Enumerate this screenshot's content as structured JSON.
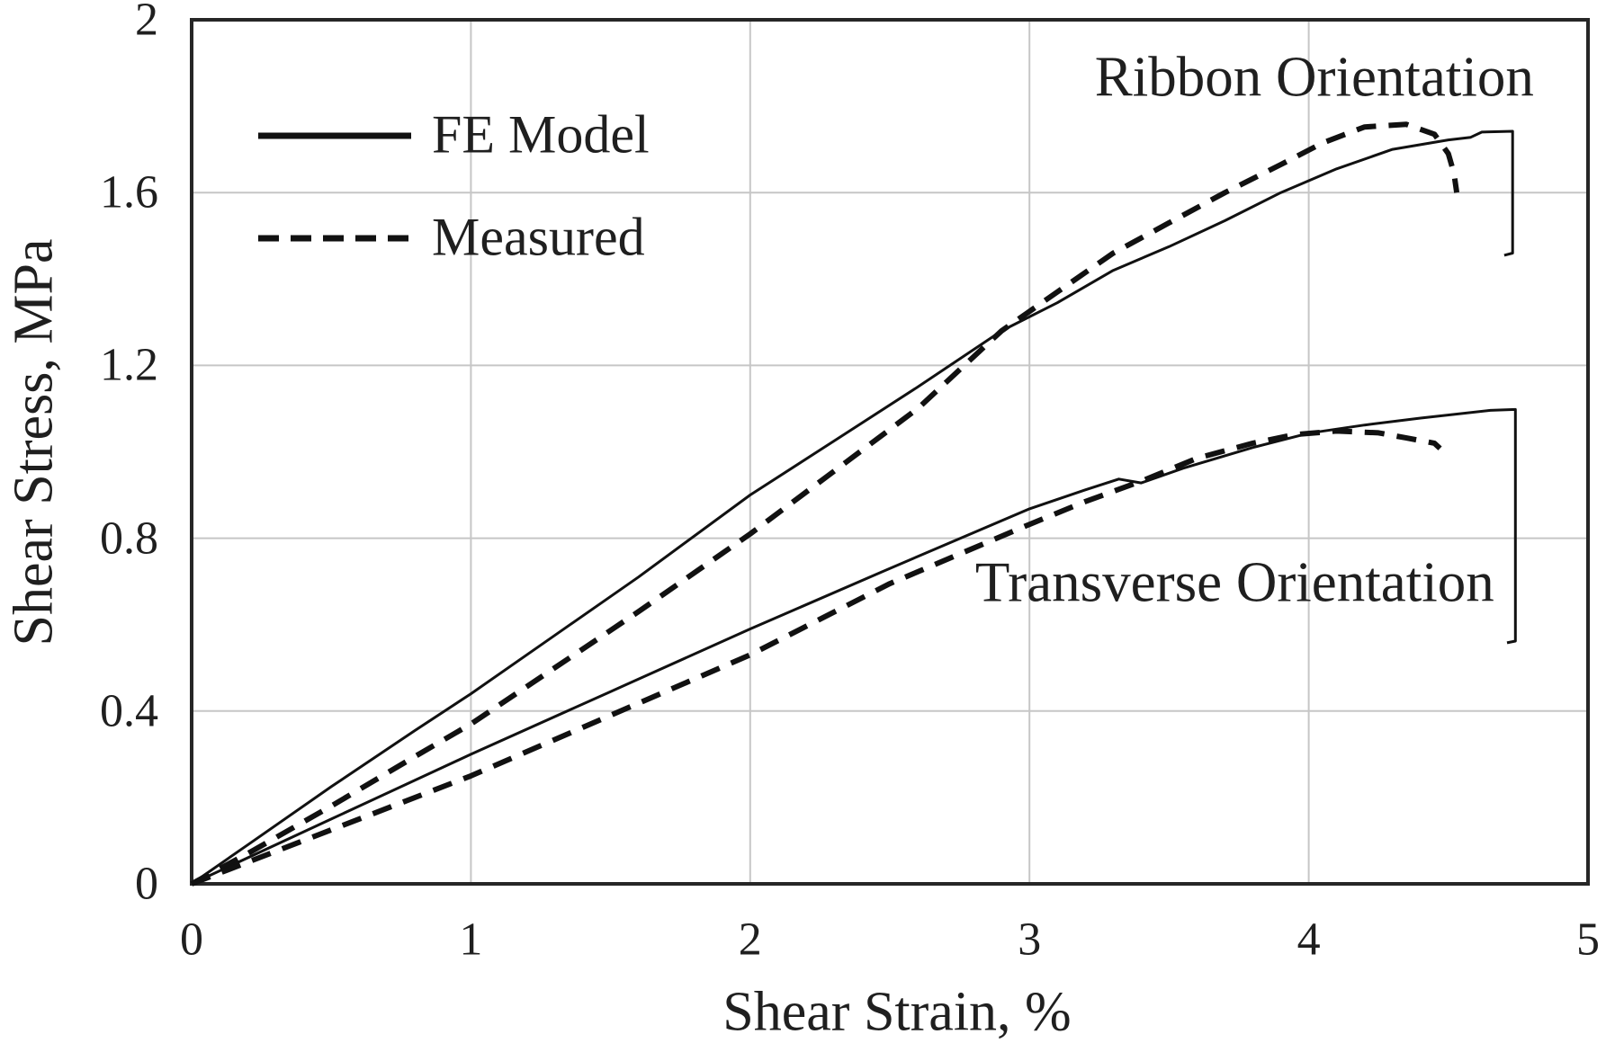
{
  "figure": {
    "x_axis_title": "Shear Strain, %",
    "y_axis_title": "Shear Stress, MPa",
    "legend": {
      "fe_model": "FE Model",
      "measured": "Measured"
    },
    "annotations": {
      "ribbon": "Ribbon Orientation",
      "transverse": "Transverse Orientation"
    },
    "colors": {
      "curve": "#111111",
      "grid": "#c6c6c6",
      "frame": "#262626",
      "text": "#1f1f1f",
      "background": "#ffffff"
    }
  },
  "chart_data": {
    "type": "line",
    "title": "",
    "xlabel": "Shear Strain, %",
    "ylabel": "Shear Stress, MPa",
    "xlim": [
      0,
      5
    ],
    "ylim": [
      0,
      2
    ],
    "x_ticks": [
      0,
      1,
      2,
      3,
      4,
      5
    ],
    "x_tick_labels": [
      "0",
      "1",
      "2",
      "3",
      "4",
      "5"
    ],
    "y_ticks": [
      0,
      0.4,
      0.8,
      1.2,
      1.6,
      2
    ],
    "y_tick_labels": [
      "0",
      "0.4",
      "0.8",
      "1.2",
      "1.6",
      "2"
    ],
    "grid": true,
    "legend_position": "upper left",
    "series": [
      {
        "name": "Ribbon Orientation — FE Model",
        "group": "Ribbon Orientation",
        "legend": "FE Model",
        "line_style": "solid",
        "points": [
          [
            0,
            0
          ],
          [
            0.2,
            0.09
          ],
          [
            0.5,
            0.225
          ],
          [
            0.8,
            0.355
          ],
          [
            1.0,
            0.44
          ],
          [
            1.3,
            0.575
          ],
          [
            1.6,
            0.71
          ],
          [
            2.0,
            0.9
          ],
          [
            2.3,
            1.025
          ],
          [
            2.6,
            1.15
          ],
          [
            2.9,
            1.28
          ],
          [
            3.1,
            1.345
          ],
          [
            3.3,
            1.42
          ],
          [
            3.5,
            1.475
          ],
          [
            3.7,
            1.535
          ],
          [
            3.9,
            1.6
          ],
          [
            4.1,
            1.655
          ],
          [
            4.3,
            1.7
          ],
          [
            4.5,
            1.722
          ],
          [
            4.58,
            1.728
          ],
          [
            4.62,
            1.74
          ],
          [
            4.73,
            1.742
          ],
          [
            4.73,
            1.46
          ],
          [
            4.7,
            1.455
          ]
        ]
      },
      {
        "name": "Ribbon Orientation — Measured",
        "group": "Ribbon Orientation",
        "legend": "Measured",
        "line_style": "dashed",
        "points": [
          [
            0,
            0
          ],
          [
            0.2,
            0.07
          ],
          [
            0.5,
            0.18
          ],
          [
            0.8,
            0.295
          ],
          [
            1.0,
            0.37
          ],
          [
            1.3,
            0.5
          ],
          [
            1.6,
            0.63
          ],
          [
            2.0,
            0.81
          ],
          [
            2.3,
            0.955
          ],
          [
            2.6,
            1.1
          ],
          [
            2.9,
            1.28
          ],
          [
            3.1,
            1.37
          ],
          [
            3.3,
            1.46
          ],
          [
            3.5,
            1.53
          ],
          [
            3.7,
            1.6
          ],
          [
            3.9,
            1.665
          ],
          [
            4.05,
            1.715
          ],
          [
            4.2,
            1.752
          ],
          [
            4.35,
            1.758
          ],
          [
            4.45,
            1.735
          ],
          [
            4.5,
            1.69
          ],
          [
            4.52,
            1.645
          ],
          [
            4.53,
            1.6
          ]
        ]
      },
      {
        "name": "Transverse Orientation — FE Model",
        "group": "Transverse Orientation",
        "legend": "FE Model",
        "line_style": "solid",
        "points": [
          [
            0,
            0
          ],
          [
            0.5,
            0.15
          ],
          [
            1.0,
            0.3
          ],
          [
            1.5,
            0.445
          ],
          [
            2.0,
            0.59
          ],
          [
            2.5,
            0.73
          ],
          [
            3.0,
            0.868
          ],
          [
            3.2,
            0.912
          ],
          [
            3.32,
            0.937
          ],
          [
            3.4,
            0.928
          ],
          [
            3.55,
            0.962
          ],
          [
            3.8,
            1.01
          ],
          [
            4.0,
            1.043
          ],
          [
            4.2,
            1.062
          ],
          [
            4.4,
            1.078
          ],
          [
            4.65,
            1.096
          ],
          [
            4.74,
            1.098
          ],
          [
            4.74,
            0.562
          ],
          [
            4.71,
            0.558
          ]
        ]
      },
      {
        "name": "Transverse Orientation — Measured",
        "group": "Transverse Orientation",
        "legend": "Measured",
        "line_style": "dashed",
        "points": [
          [
            0,
            0
          ],
          [
            0.5,
            0.125
          ],
          [
            1.0,
            0.25
          ],
          [
            1.5,
            0.39
          ],
          [
            2.0,
            0.53
          ],
          [
            2.5,
            0.695
          ],
          [
            3.0,
            0.832
          ],
          [
            3.2,
            0.885
          ],
          [
            3.4,
            0.932
          ],
          [
            3.6,
            0.985
          ],
          [
            3.8,
            1.02
          ],
          [
            3.95,
            1.04
          ],
          [
            4.1,
            1.048
          ],
          [
            4.25,
            1.044
          ],
          [
            4.35,
            1.032
          ],
          [
            4.45,
            1.02
          ],
          [
            4.47,
            1.008
          ]
        ]
      }
    ],
    "annotations": [
      {
        "key": "ribbon",
        "text": "Ribbon Orientation",
        "x": 4.02,
        "y": 1.866
      },
      {
        "key": "transverse",
        "text": "Transverse Orientation",
        "x": 3.735,
        "y": 0.697
      }
    ]
  }
}
